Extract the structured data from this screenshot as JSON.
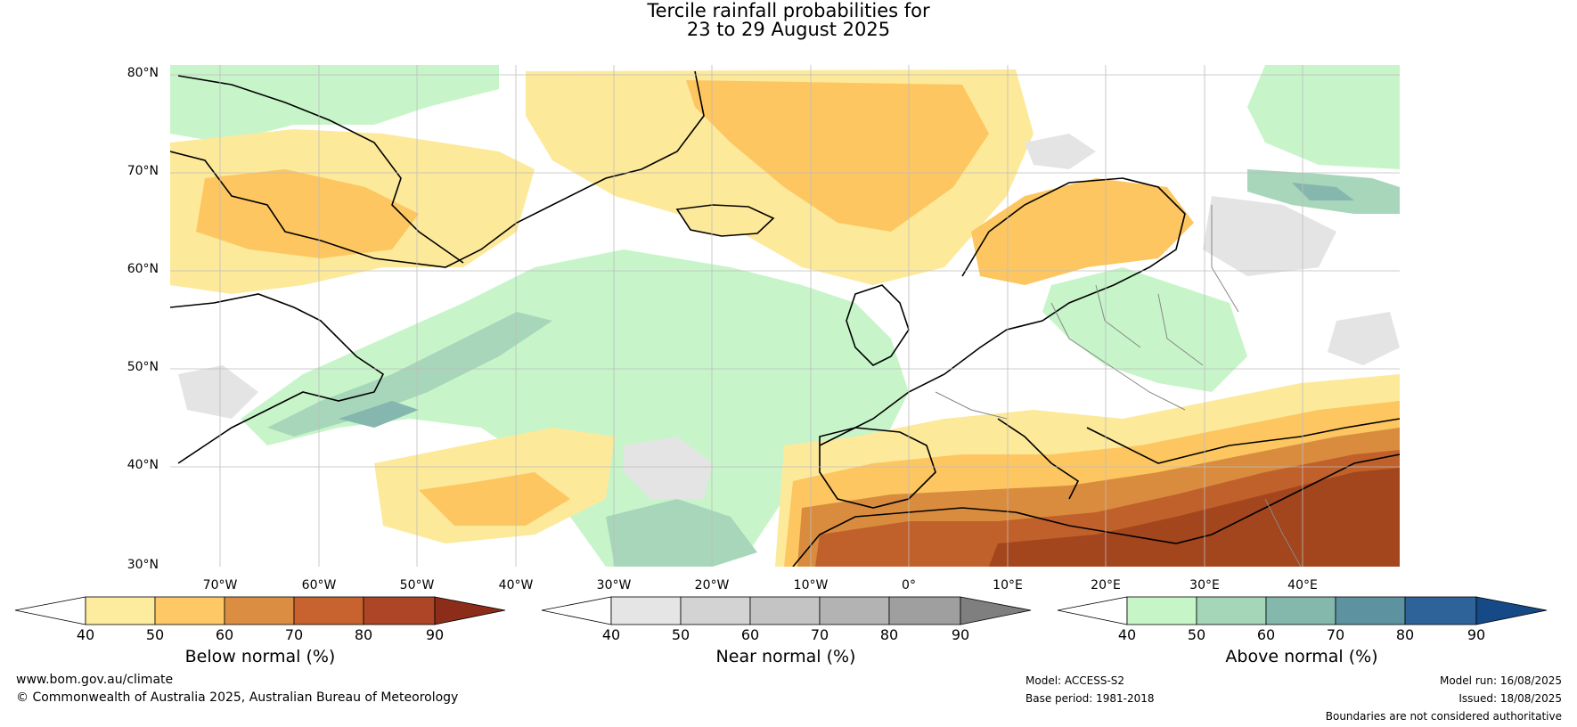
{
  "title": {
    "line1": "Tercile rainfall probabilities for",
    "line2": "23 to 29 August 2025"
  },
  "map": {
    "lat_labels": [
      "80°N",
      "70°N",
      "60°N",
      "50°N",
      "40°N",
      "30°N"
    ],
    "lon_labels": [
      "70°W",
      "60°W",
      "50°W",
      "40°W",
      "30°W",
      "20°W",
      "10°W",
      "0°",
      "10°E",
      "20°E",
      "30°E",
      "40°E"
    ],
    "regions": {
      "arctic_above": "#c7f5c9",
      "above_normal_mid": "#a7d6ba",
      "above_normal_high": "#85b7ae",
      "below_normal_low": "#fde99a",
      "below_normal_mid": "#fdc660",
      "below_normal_high": "#d98c3e",
      "below_normal_vhigh": "#c0602a",
      "below_normal_max": "#a3451d",
      "near_normal_low": "#e4e4e4",
      "near_normal_mid": "#cfcfcf"
    }
  },
  "colorbars": {
    "below": {
      "title": "Below normal (%)",
      "ticks": [
        "40",
        "50",
        "60",
        "70",
        "80",
        "90"
      ],
      "colors": [
        "#fdeb9e",
        "#fdc865",
        "#db8e42",
        "#c8622e",
        "#ad4526"
      ],
      "end_color": "#8c2d19"
    },
    "near": {
      "title": "Near normal (%)",
      "ticks": [
        "40",
        "50",
        "60",
        "70",
        "80",
        "90"
      ],
      "colors": [
        "#e5e5e5",
        "#d3d3d3",
        "#c4c4c4",
        "#b3b3b3",
        "#9f9f9f"
      ],
      "end_color": "#7f7f7f"
    },
    "above": {
      "title": "Above normal (%)",
      "ticks": [
        "40",
        "50",
        "60",
        "70",
        "80",
        "90"
      ],
      "colors": [
        "#c6f6c8",
        "#a5d6b8",
        "#84b8ad",
        "#5d92a1",
        "#2e6399"
      ],
      "end_color": "#154a87"
    }
  },
  "footer": {
    "website": "www.bom.gov.au/climate",
    "copyright": "© Commonwealth of Australia 2025, Australian Bureau of Meteorology",
    "model": "Model: ACCESS-S2",
    "base_period": "Base period: 1981-2018",
    "model_run": "Model run: 16/08/2025",
    "issued": "Issued: 18/08/2025",
    "disclaimer": "Boundaries are not considered authoritative"
  }
}
